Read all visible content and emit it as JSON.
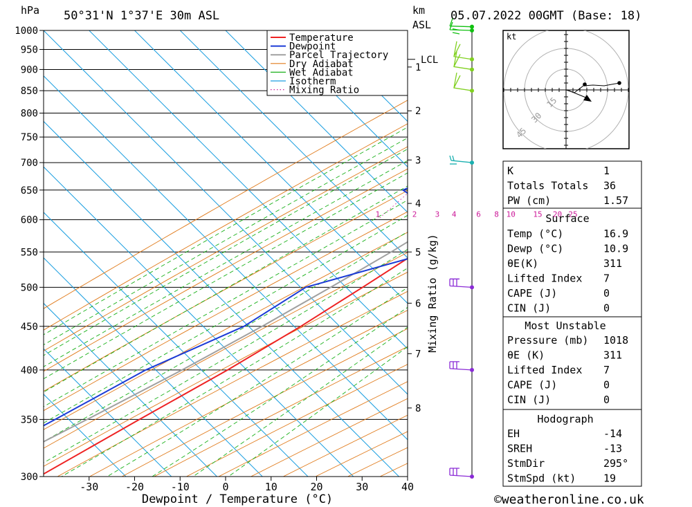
{
  "header": {
    "unit_hpa": "hPa",
    "location": "50°31'N 1°37'E 30m ASL",
    "unit_km": "km",
    "unit_asl": "ASL",
    "datetime": "05.07.2022 00GMT (Base: 18)"
  },
  "footer": {
    "copyright": "©weatheronline.co.uk"
  },
  "colors": {
    "temperature": "#ee2222",
    "dewpoint": "#1a3ad6",
    "parcel": "#a0a0a0",
    "dry_adiabat": "#e07a1a",
    "wet_adiabat": "#19b019",
    "isotherm": "#1a9ee0",
    "mixing_ratio": "#cc1a99",
    "wind_upper": "#8a2ad6",
    "wind_mid": "#1ab0b0",
    "wind_low": "#80d020",
    "wind_sfc": "#10c010"
  },
  "chart_data": {
    "type": "line",
    "subtype": "skew-t log-p sounding",
    "xlabel": "Dewpoint / Temperature (°C)",
    "ylabel": "hPa",
    "x_ticks": [
      "-30",
      "-20",
      "-10",
      "0",
      "10",
      "20",
      "30",
      "40"
    ],
    "x_tick_values": [
      -30,
      -20,
      -10,
      0,
      10,
      20,
      30,
      40
    ],
    "y_ticks": [
      "300",
      "350",
      "400",
      "450",
      "500",
      "550",
      "600",
      "650",
      "700",
      "750",
      "800",
      "850",
      "900",
      "950",
      "1000"
    ],
    "y_tick_values": [
      300,
      350,
      400,
      450,
      500,
      550,
      600,
      650,
      700,
      750,
      800,
      850,
      900,
      950,
      1000
    ],
    "x_range_at_1000hPa": [
      -40,
      40
    ],
    "y_range": [
      1000,
      300
    ],
    "y_scale": "log",
    "km_axis": {
      "labels": [
        "8",
        "7",
        "6",
        "5",
        "4",
        "3",
        "2",
        "1"
      ],
      "pressures": [
        361,
        418,
        479,
        550,
        627,
        705,
        805,
        906
      ]
    },
    "lcl": {
      "label": "LCL",
      "pressure": 925
    },
    "mixing_ratio_axis": {
      "title": "Mixing Ratio (g/kg)",
      "labels": [
        "1",
        "2",
        "3",
        "4",
        "6",
        "8",
        "10",
        "15",
        "20",
        "25"
      ],
      "values": [
        1,
        2,
        3,
        4,
        6,
        8,
        10,
        15,
        20,
        25
      ]
    },
    "legend": {
      "placement": "top-right",
      "entries": [
        "Temperature",
        "Dewpoint",
        "Parcel Trajectory",
        "Dry Adiabat",
        "Wet Adiabat",
        "Isotherm",
        "Mixing Ratio"
      ]
    },
    "series": [
      {
        "name": "Temperature",
        "points": [
          [
            1010,
            16.9
          ],
          [
            1000,
            16.3
          ],
          [
            950,
            14.5
          ],
          [
            900,
            12.0
          ],
          [
            850,
            10.0
          ],
          [
            800,
            8.5
          ],
          [
            750,
            6.3
          ],
          [
            700,
            3.8
          ],
          [
            650,
            1.0
          ],
          [
            600,
            -3.0
          ],
          [
            550,
            -7.2
          ],
          [
            500,
            -11.5
          ],
          [
            450,
            -16.5
          ],
          [
            400,
            -23.0
          ],
          [
            350,
            -31.5
          ],
          [
            300,
            -41.0
          ]
        ]
      },
      {
        "name": "Dewpoint",
        "points": [
          [
            1010,
            10.9
          ],
          [
            1000,
            10.0
          ],
          [
            960,
            8.5
          ],
          [
            940,
            9.0
          ],
          [
            900,
            9.5
          ],
          [
            850,
            6.0
          ],
          [
            820,
            0.5
          ],
          [
            800,
            -1.5
          ],
          [
            750,
            -8.5
          ],
          [
            700,
            -16.0
          ],
          [
            650,
            -24.0
          ],
          [
            600,
            -8.0
          ],
          [
            550,
            -4.0
          ],
          [
            500,
            -24.0
          ],
          [
            450,
            -29.0
          ],
          [
            400,
            -41.0
          ],
          [
            350,
            -50.0
          ],
          [
            300,
            -61.0
          ]
        ]
      },
      {
        "name": "Parcel Trajectory",
        "points": [
          [
            1010,
            16.9
          ],
          [
            950,
            11.0
          ],
          [
            925,
            10.5
          ],
          [
            900,
            9.3
          ],
          [
            850,
            7.0
          ],
          [
            800,
            4.5
          ],
          [
            750,
            1.8
          ],
          [
            700,
            -1.2
          ],
          [
            650,
            -4.5
          ],
          [
            600,
            -8.5
          ],
          [
            550,
            -13.0
          ],
          [
            500,
            -18.5
          ],
          [
            450,
            -25.0
          ],
          [
            400,
            -33.0
          ],
          [
            350,
            -43.0
          ],
          [
            300,
            -55.0
          ]
        ]
      }
    ],
    "wind_barbs": [
      {
        "pressure": 300,
        "level": "upper"
      },
      {
        "pressure": 400,
        "level": "upper"
      },
      {
        "pressure": 500,
        "level": "upper"
      },
      {
        "pressure": 700,
        "level": "mid"
      },
      {
        "pressure": 850,
        "level": "low"
      },
      {
        "pressure": 900,
        "level": "low"
      },
      {
        "pressure": 925,
        "level": "low"
      },
      {
        "pressure": 1000,
        "level": "sfc"
      },
      {
        "pressure": 1010,
        "level": "sfc"
      }
    ]
  },
  "hodograph": {
    "unit": "kt",
    "ring_labels": [
      "15",
      "30",
      "45"
    ]
  },
  "indices": {
    "general": [
      {
        "label": "K",
        "value": "1"
      },
      {
        "label": "Totals Totals",
        "value": "36"
      },
      {
        "label": "PW (cm)",
        "value": "1.57"
      }
    ],
    "surface": {
      "title": "Surface",
      "rows": [
        {
          "label": "Temp (°C)",
          "value": "16.9"
        },
        {
          "label": "Dewp (°C)",
          "value": "10.9"
        },
        {
          "label": "θE(K)",
          "value": "311"
        },
        {
          "label": "Lifted Index",
          "value": "7"
        },
        {
          "label": "CAPE (J)",
          "value": "0"
        },
        {
          "label": "CIN (J)",
          "value": "0"
        }
      ]
    },
    "most_unstable": {
      "title": "Most Unstable",
      "rows": [
        {
          "label": "Pressure (mb)",
          "value": "1018"
        },
        {
          "label": "θE (K)",
          "value": "311"
        },
        {
          "label": "Lifted Index",
          "value": "7"
        },
        {
          "label": "CAPE (J)",
          "value": "0"
        },
        {
          "label": "CIN (J)",
          "value": "0"
        }
      ]
    },
    "hodograph_stats": {
      "title": "Hodograph",
      "rows": [
        {
          "label": "EH",
          "value": "-14"
        },
        {
          "label": "SREH",
          "value": "-13"
        },
        {
          "label": "StmDir",
          "value": "295°"
        },
        {
          "label": "StmSpd (kt)",
          "value": "19"
        }
      ]
    }
  }
}
